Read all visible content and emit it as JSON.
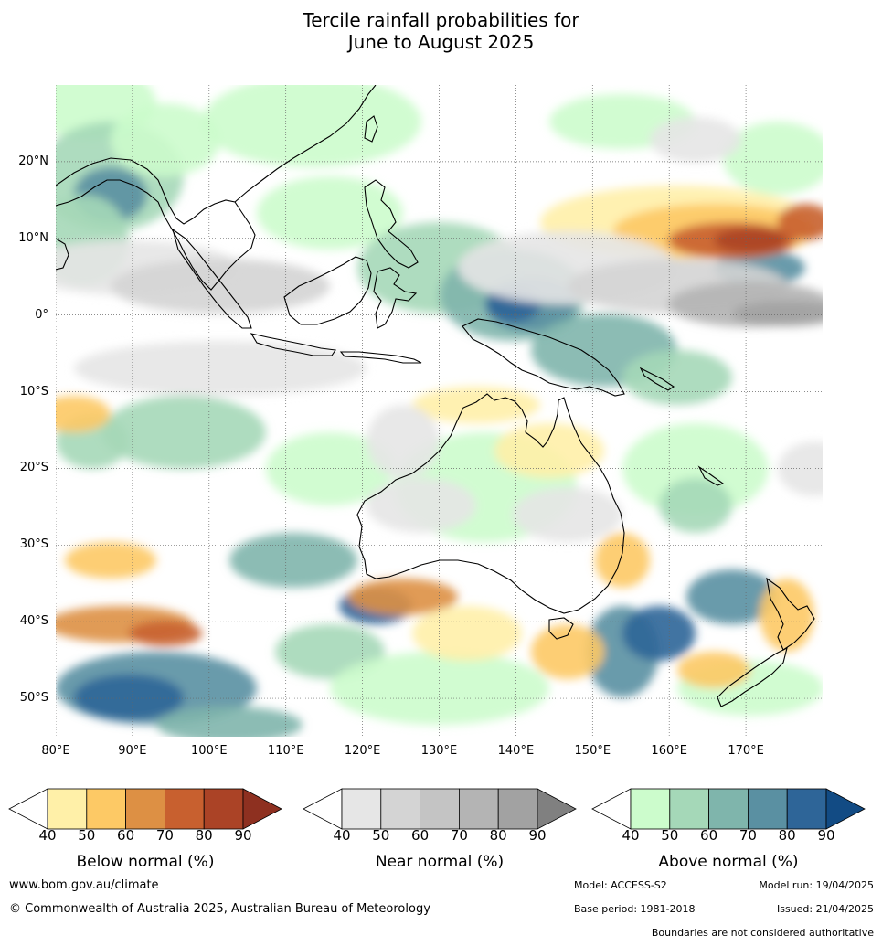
{
  "title": {
    "line1": "Tercile rainfall probabilities for",
    "line2": "June to August 2025"
  },
  "map": {
    "lon_range": [
      80,
      180
    ],
    "lat_range": [
      -55,
      30
    ],
    "lat_ticks": [
      {
        "value": 20,
        "label": "20°N"
      },
      {
        "value": 10,
        "label": "10°N"
      },
      {
        "value": 0,
        "label": "0°"
      },
      {
        "value": -10,
        "label": "10°S"
      },
      {
        "value": -20,
        "label": "20°S"
      },
      {
        "value": -30,
        "label": "30°S"
      },
      {
        "value": -40,
        "label": "40°S"
      },
      {
        "value": -50,
        "label": "50°S"
      }
    ],
    "lon_ticks": [
      {
        "value": 80,
        "label": "80°E"
      },
      {
        "value": 90,
        "label": "90°E"
      },
      {
        "value": 100,
        "label": "100°E"
      },
      {
        "value": 110,
        "label": "110°E"
      },
      {
        "value": 120,
        "label": "120°E"
      },
      {
        "value": 130,
        "label": "130°E"
      },
      {
        "value": 140,
        "label": "140°E"
      },
      {
        "value": 150,
        "label": "150°E"
      },
      {
        "value": 160,
        "label": "160°E"
      },
      {
        "value": 170,
        "label": "170°E"
      }
    ],
    "gridlines": true,
    "colors": {
      "below": [
        "#fff0a8",
        "#fdc965",
        "#dd9044",
        "#c8602f",
        "#ab4326",
        "#8e3020"
      ],
      "near": [
        "#e6e6e6",
        "#d4d4d4",
        "#c4c4c4",
        "#b4b4b4",
        "#a2a2a2",
        "#808080"
      ],
      "above": [
        "#ccfccc",
        "#a5d8b8",
        "#7fb5ac",
        "#5a90a2",
        "#2e6598",
        "#124b84"
      ]
    }
  },
  "legends": [
    {
      "id": "below",
      "label": "Below normal (%)",
      "ticks": [
        "40",
        "50",
        "60",
        "70",
        "80",
        "90"
      ]
    },
    {
      "id": "near",
      "label": "Near normal (%)",
      "ticks": [
        "40",
        "50",
        "60",
        "70",
        "80",
        "90"
      ]
    },
    {
      "id": "above",
      "label": "Above normal (%)",
      "ticks": [
        "40",
        "50",
        "60",
        "70",
        "80",
        "90"
      ]
    }
  ],
  "footer": {
    "website": "www.bom.gov.au/climate",
    "copyright": "© Commonwealth of Australia 2025, Australian Bureau of Meteorology",
    "model": "Model: ACCESS-S2",
    "model_run": "Model run: 19/04/2025",
    "base_period": "Base period: 1981-2018",
    "issued": "Issued: 21/04/2025",
    "disclaimer": "Boundaries are not considered authoritative"
  }
}
